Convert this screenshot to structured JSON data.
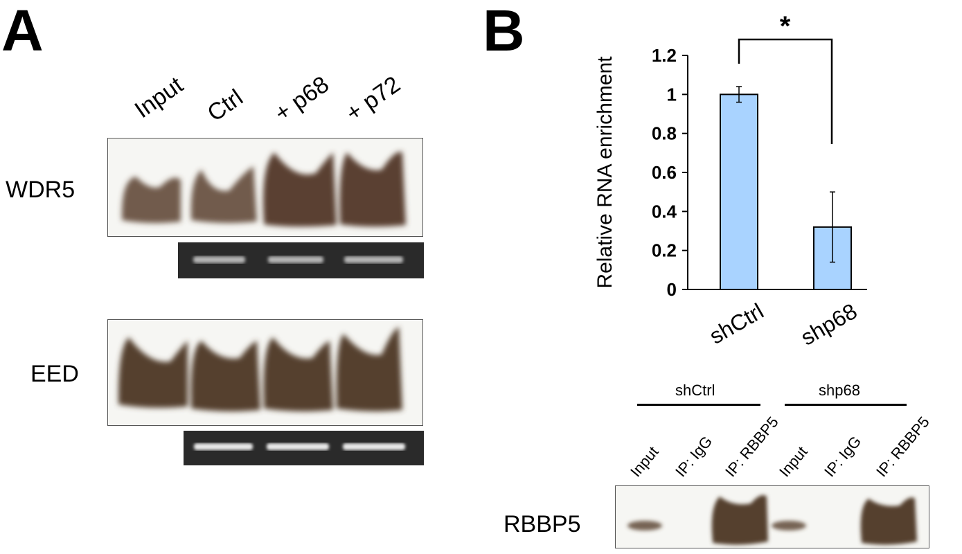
{
  "panel_a": {
    "letter": "A",
    "lanes": [
      "Input",
      "Ctrl",
      "+ p68",
      "+ p72"
    ],
    "rows": [
      "WDR5",
      "EED"
    ]
  },
  "panel_b": {
    "letter": "B",
    "significance": "*",
    "chart_data": {
      "type": "bar",
      "categories": [
        "shCtrl",
        "shp68"
      ],
      "values": [
        1.0,
        0.32
      ],
      "errors": [
        0.04,
        0.18
      ],
      "ylabel": "Relative RNA enrichment",
      "ylim": [
        0,
        1.2
      ],
      "yticks": [
        "0",
        "0.2",
        "0.4",
        "0.6",
        "0.8",
        "1",
        "1.2"
      ],
      "bar_color": "#a9d3ff",
      "grid": false
    },
    "blot": {
      "groups": [
        "shCtrl",
        "shp68"
      ],
      "lanes": [
        "Input",
        "IP: IgG",
        "IP: RBBP5",
        "Input",
        "IP: IgG",
        "IP: RBBP5"
      ],
      "row": "RBBP5"
    }
  }
}
